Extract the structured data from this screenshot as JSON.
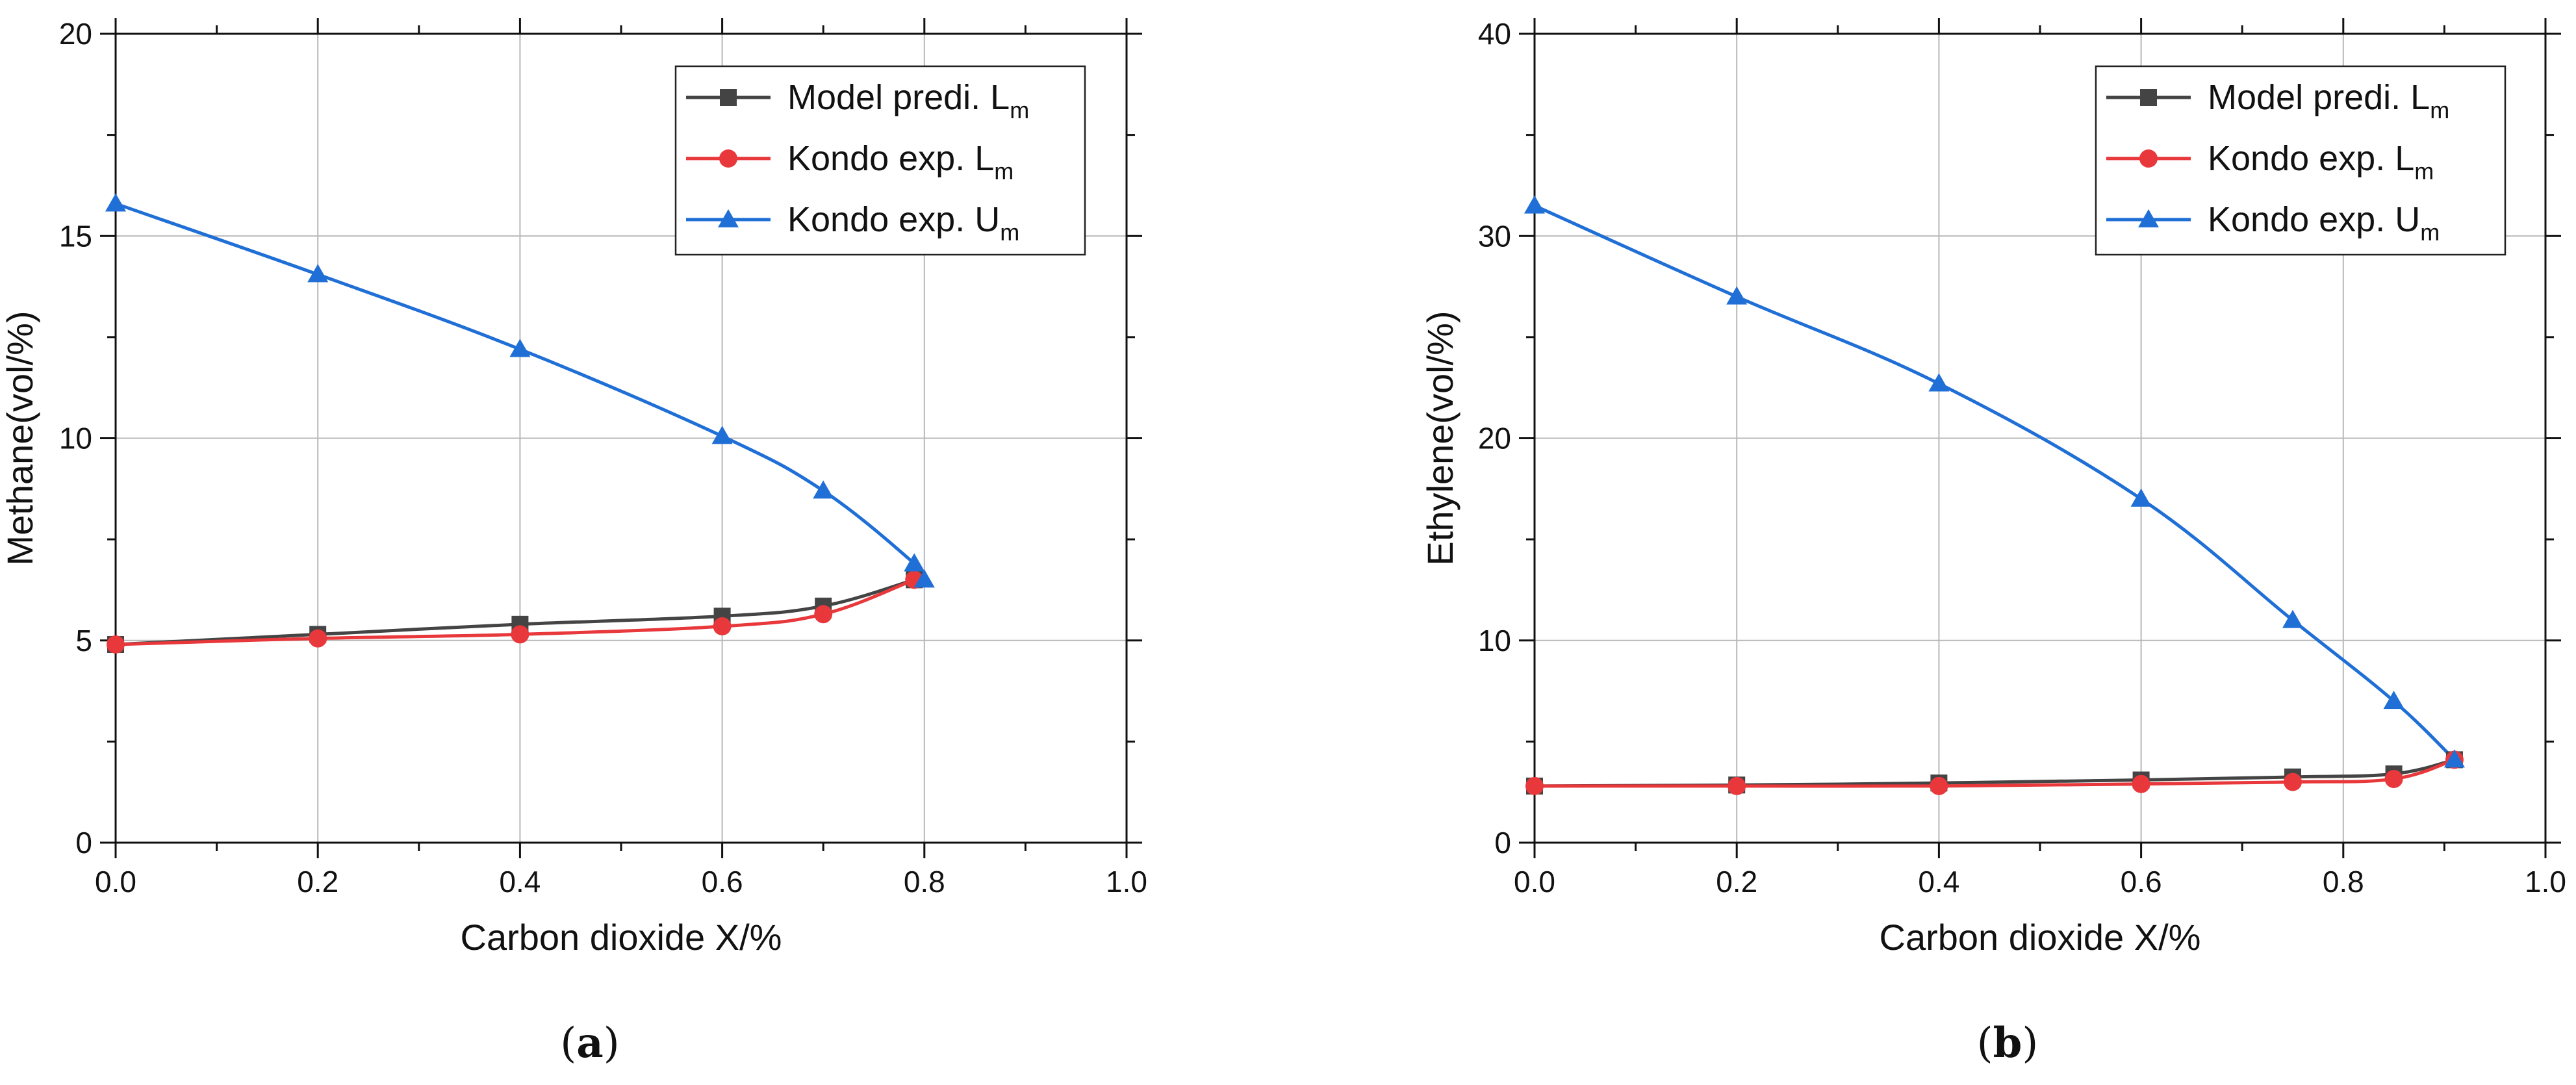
{
  "chart_data": [
    {
      "type": "line",
      "panel_label": "a",
      "title": "",
      "xlabel": "Carbon dioxide X/%",
      "ylabel": "Methane(vol/%)",
      "xlim": [
        0.0,
        1.0
      ],
      "ylim": [
        0,
        20
      ],
      "xticks": [
        "0.0",
        "0.2",
        "0.4",
        "0.6",
        "0.8",
        "1.0"
      ],
      "yticks": [
        "0",
        "5",
        "10",
        "15",
        "20"
      ],
      "xtick_values": [
        0.0,
        0.2,
        0.4,
        0.6,
        0.8,
        1.0
      ],
      "ytick_values": [
        0,
        5,
        10,
        15,
        20
      ],
      "grid": true,
      "legend_position": "top-right",
      "series": [
        {
          "name": "Model predi. L",
          "sub": "m",
          "color": "#444444",
          "marker": "square",
          "x": [
            0.0,
            0.2,
            0.4,
            0.6,
            0.7,
            0.79
          ],
          "y": [
            4.9,
            5.15,
            5.4,
            5.6,
            5.85,
            6.5
          ]
        },
        {
          "name": "Kondo exp. L",
          "sub": "m",
          "color": "#e8383b",
          "marker": "circle",
          "x": [
            0.0,
            0.2,
            0.4,
            0.6,
            0.7,
            0.79
          ],
          "y": [
            4.9,
            5.05,
            5.15,
            5.35,
            5.65,
            6.5
          ]
        },
        {
          "name": "Kondo exp. U",
          "sub": "m",
          "color": "#1f6fd6",
          "marker": "triangle",
          "x": [
            0.0,
            0.2,
            0.4,
            0.6,
            0.7,
            0.79,
            0.8
          ],
          "y": [
            15.8,
            14.05,
            12.2,
            10.05,
            8.7,
            6.9,
            6.5
          ]
        }
      ]
    },
    {
      "type": "line",
      "panel_label": "b",
      "title": "",
      "xlabel": "Carbon dioxide X/%",
      "ylabel": "Ethylene(vol/%)",
      "xlim": [
        0.0,
        1.0
      ],
      "ylim": [
        0,
        40
      ],
      "xticks": [
        "0.0",
        "0.2",
        "0.4",
        "0.6",
        "0.8",
        "1.0"
      ],
      "yticks": [
        "0",
        "10",
        "20",
        "30",
        "40"
      ],
      "xtick_values": [
        0.0,
        0.2,
        0.4,
        0.6,
        0.8,
        1.0
      ],
      "ytick_values": [
        0,
        10,
        20,
        30,
        40
      ],
      "grid": true,
      "legend_position": "top-right",
      "series": [
        {
          "name": "Model predi. L",
          "sub": "m",
          "color": "#444444",
          "marker": "square",
          "x": [
            0.0,
            0.2,
            0.4,
            0.6,
            0.75,
            0.85,
            0.91
          ],
          "y": [
            2.8,
            2.85,
            2.95,
            3.1,
            3.25,
            3.4,
            4.1
          ]
        },
        {
          "name": "Kondo exp. L",
          "sub": "m",
          "color": "#e8383b",
          "marker": "circle",
          "x": [
            0.0,
            0.2,
            0.4,
            0.6,
            0.75,
            0.85,
            0.91
          ],
          "y": [
            2.8,
            2.8,
            2.8,
            2.9,
            3.0,
            3.15,
            4.1
          ]
        },
        {
          "name": "Kondo exp. U",
          "sub": "m",
          "color": "#1f6fd6",
          "marker": "triangle",
          "x": [
            0.0,
            0.2,
            0.4,
            0.6,
            0.75,
            0.85,
            0.91
          ],
          "y": [
            31.5,
            27.0,
            22.7,
            17.0,
            11.0,
            7.0,
            4.1
          ]
        }
      ]
    }
  ]
}
